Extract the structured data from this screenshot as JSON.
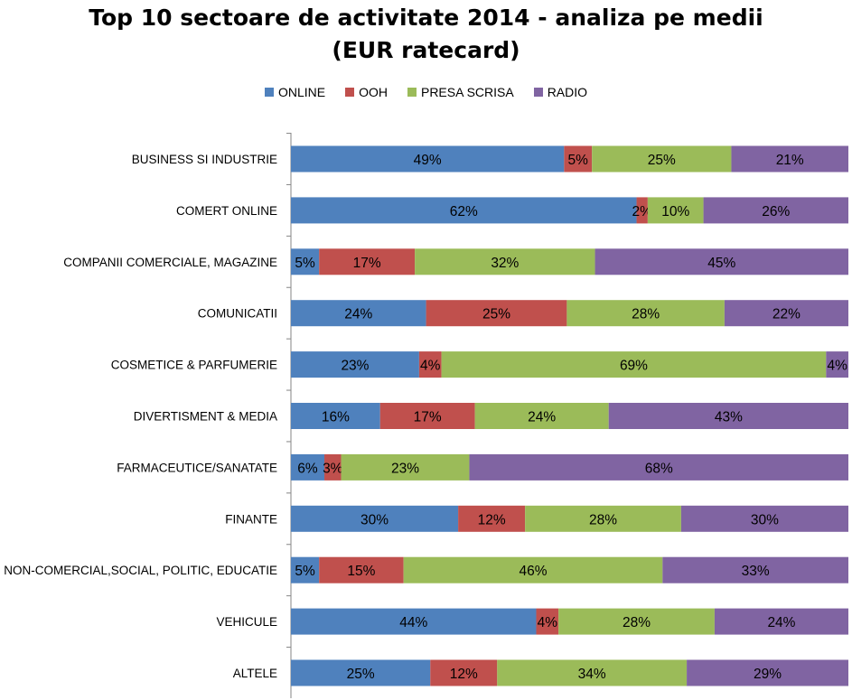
{
  "chart_data": {
    "type": "bar",
    "orientation": "horizontal",
    "stacked": "100%",
    "title_lines": [
      "Top 10 sectoare de activitate 2014 - analiza pe medii",
      "(EUR ratecard)"
    ],
    "legend_position": "top",
    "grid": false,
    "xlim": [
      0,
      100
    ],
    "categories": [
      "BUSINESS SI INDUSTRIE",
      "COMERT ONLINE",
      "COMPANII COMERCIALE, MAGAZINE",
      "COMUNICATII",
      "COSMETICE & PARFUMERIE",
      "DIVERTISMENT & MEDIA",
      "FARMACEUTICE/SANATATE",
      "FINANTE",
      "NON-COMERCIAL,SOCIAL, POLITIC, EDUCATIE",
      "VEHICULE",
      "ALTELE"
    ],
    "series": [
      {
        "name": "ONLINE",
        "color": "#4F81BD",
        "values": [
          49,
          62,
          5,
          24,
          23,
          16,
          6,
          30,
          5,
          44,
          25
        ]
      },
      {
        "name": "OOH",
        "color": "#C0504D",
        "values": [
          5,
          2,
          17,
          25,
          4,
          17,
          3,
          12,
          15,
          4,
          12
        ]
      },
      {
        "name": "PRESA SCRISA",
        "color": "#9BBB59",
        "values": [
          25,
          10,
          32,
          28,
          69,
          24,
          23,
          28,
          46,
          28,
          34
        ]
      },
      {
        "name": "RADIO",
        "color": "#8064A2",
        "values": [
          21,
          26,
          45,
          22,
          4,
          43,
          68,
          30,
          33,
          24,
          29
        ]
      }
    ],
    "value_suffix": "%"
  }
}
